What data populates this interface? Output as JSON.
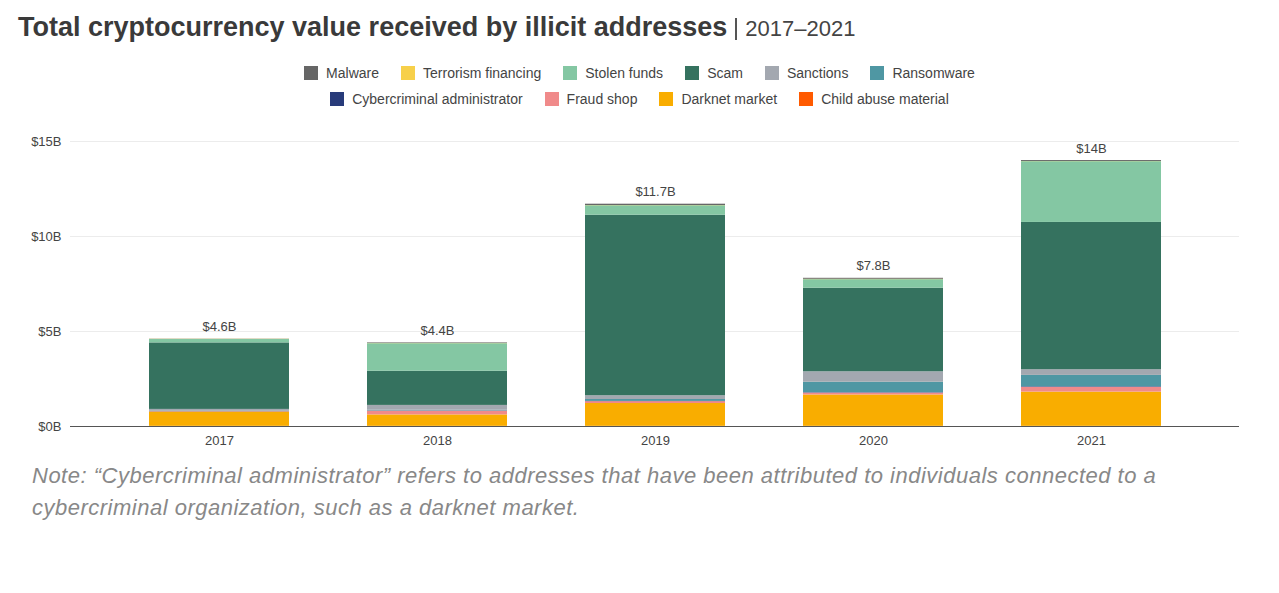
{
  "chart_data": {
    "type": "bar",
    "title": "Total cryptocurrency value received by illicit addresses",
    "subtitle": "2017–2021",
    "note": "Note: “Cybercriminal administrator” refers to addresses that have been attributed to individuals connected to a cybercriminal organization, such as a darknet market.",
    "categories": [
      "2017",
      "2018",
      "2019",
      "2020",
      "2021"
    ],
    "stacked": true,
    "grid": true,
    "legend": "top",
    "ylim": [
      0,
      15
    ],
    "yticks": [
      {
        "value": 0,
        "label": "$0B"
      },
      {
        "value": 5,
        "label": "$5B"
      },
      {
        "value": 10,
        "label": "$10B"
      },
      {
        "value": 15,
        "label": "$15B"
      }
    ],
    "totals": [
      4.6,
      4.4,
      11.7,
      7.8,
      14
    ],
    "total_labels": [
      "$4.6B",
      "$4.4B",
      "$11.7B",
      "$7.8B",
      "$14B"
    ],
    "series": [
      {
        "name": "Malware",
        "color": "#666666",
        "values": [
          0.01,
          0.03,
          0.07,
          0.05,
          0.05
        ]
      },
      {
        "name": "Terrorism financing",
        "color": "#f7d04a",
        "values": [
          0.01,
          0.01,
          0.01,
          0.02,
          0.01
        ]
      },
      {
        "name": "Stolen funds",
        "color": "#84c7a3",
        "values": [
          0.18,
          1.45,
          0.5,
          0.45,
          3.2
        ]
      },
      {
        "name": "Scam",
        "color": "#35725f",
        "values": [
          3.5,
          1.8,
          9.5,
          4.4,
          7.75
        ]
      },
      {
        "name": "Sanctions",
        "color": "#a3a8b0",
        "values": [
          0.1,
          0.25,
          0.2,
          0.55,
          0.3
        ]
      },
      {
        "name": "Ransomware",
        "color": "#4f97a3",
        "values": [
          0.01,
          0.04,
          0.1,
          0.55,
          0.6
        ]
      },
      {
        "name": "Cybercriminal administrator",
        "color": "#283b7a",
        "values": [
          0.01,
          0.01,
          0.01,
          0.02,
          0.03
        ]
      },
      {
        "name": "Fraud shop",
        "color": "#f08a8a",
        "values": [
          0.02,
          0.2,
          0.1,
          0.1,
          0.25
        ]
      },
      {
        "name": "Darknet market",
        "color": "#f9ad00",
        "values": [
          0.75,
          0.6,
          1.2,
          1.65,
          1.8
        ]
      },
      {
        "name": "Child abuse material",
        "color": "#ff5a00",
        "values": [
          0.01,
          0.01,
          0.01,
          0.01,
          0.01
        ]
      }
    ]
  }
}
